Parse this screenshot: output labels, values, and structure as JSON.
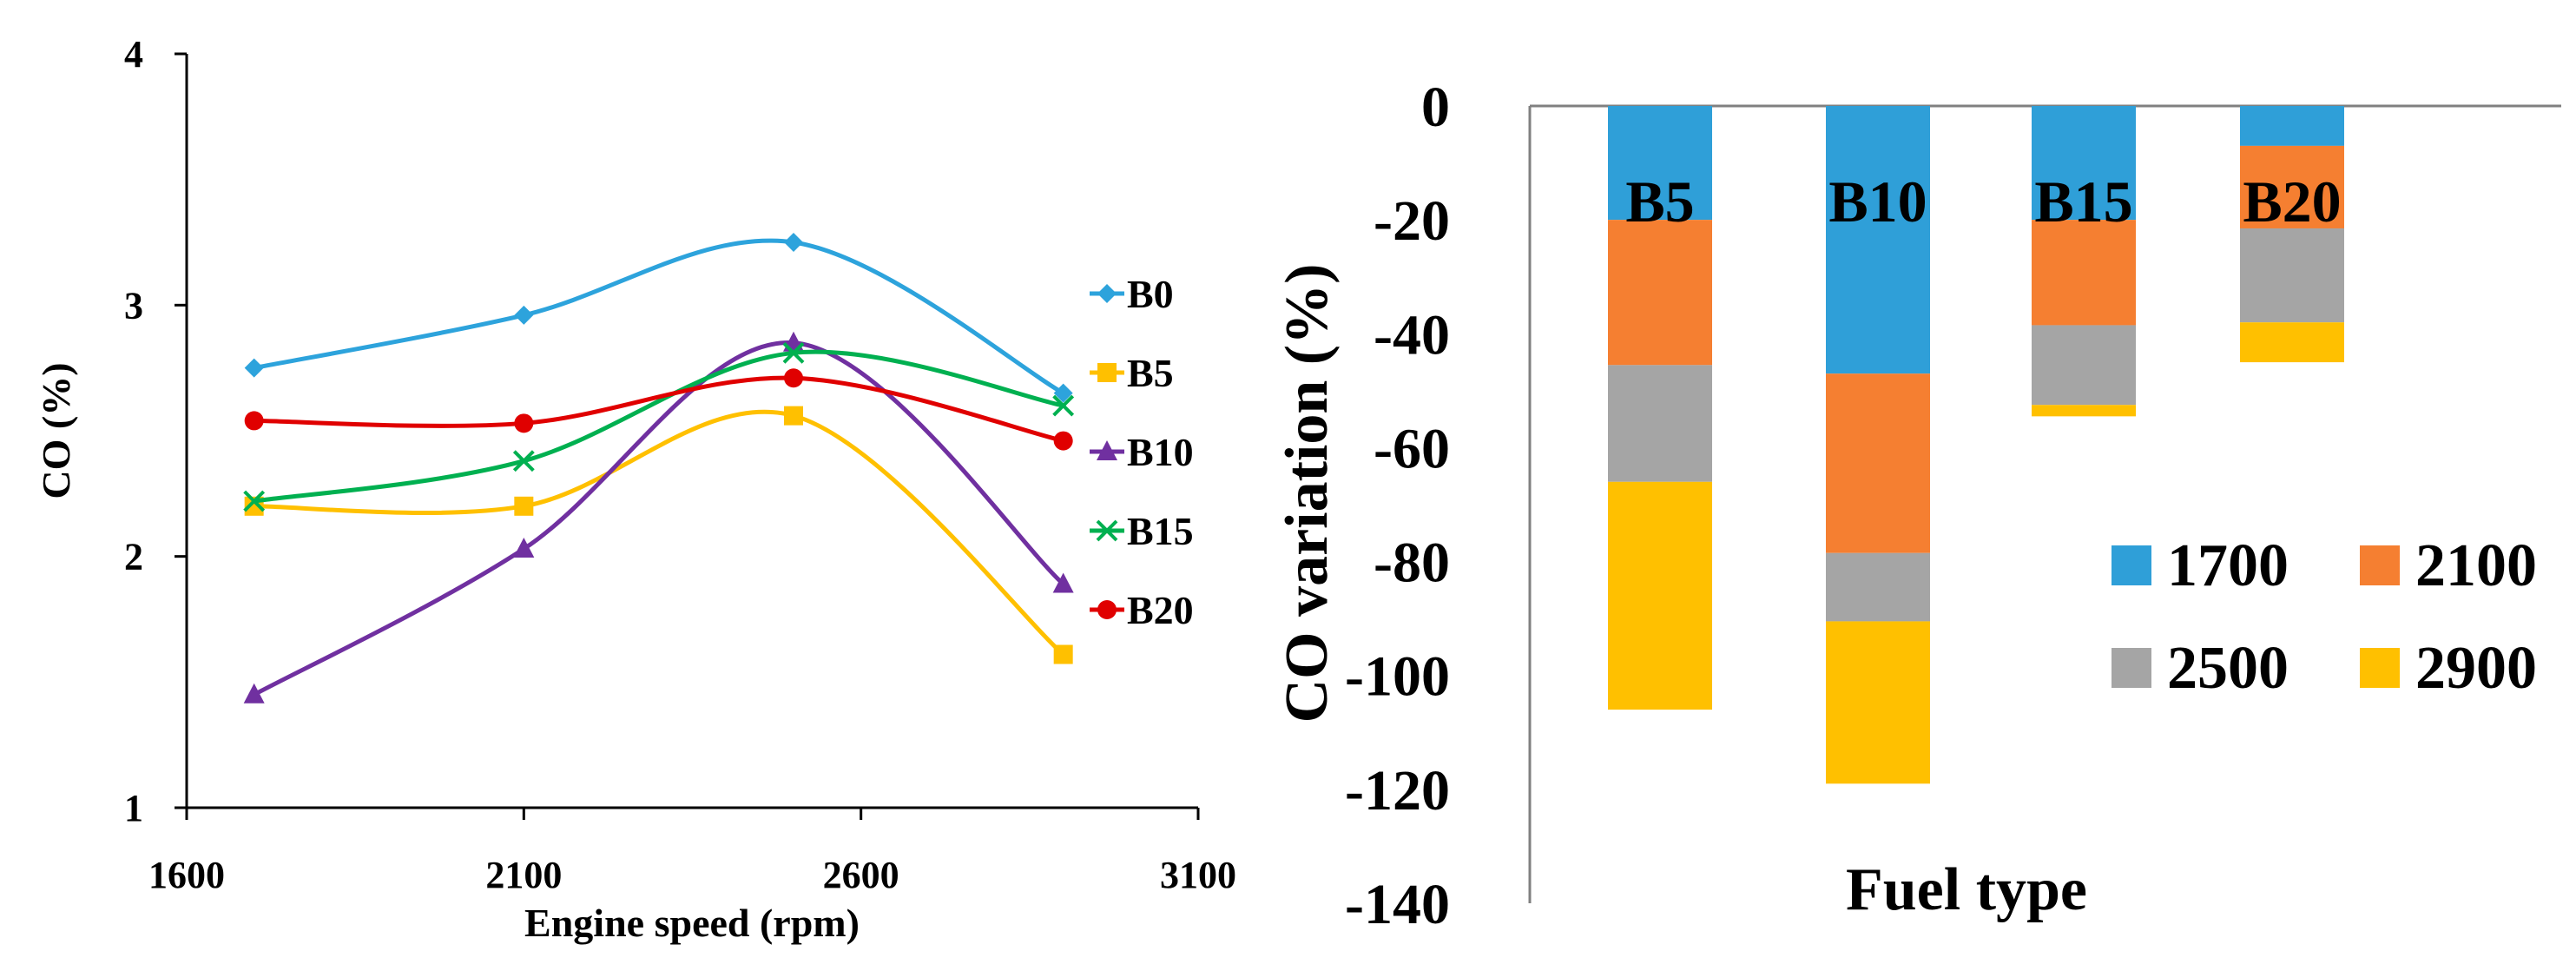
{
  "chart_data": [
    {
      "type": "line",
      "title": "",
      "xlabel": "Engine speed (rpm)",
      "ylabel": "CO (%)",
      "xlim": [
        1600,
        3100
      ],
      "ylim": [
        1,
        4
      ],
      "x_ticks": [
        "1600",
        "2100",
        "2600",
        "3100"
      ],
      "y_ticks": [
        "1",
        "2",
        "3",
        "4"
      ],
      "x": [
        1700,
        2100,
        2500,
        2900
      ],
      "series": [
        {
          "name": "B0",
          "values": [
            2.75,
            2.96,
            3.25,
            2.65
          ],
          "color": "#2da3dc",
          "marker": "diamond"
        },
        {
          "name": "B5",
          "values": [
            2.2,
            2.2,
            2.56,
            1.61
          ],
          "color": "#ffc000",
          "marker": "square"
        },
        {
          "name": "B10",
          "values": [
            1.45,
            2.03,
            2.85,
            1.89
          ],
          "color": "#7030a0",
          "marker": "triangle"
        },
        {
          "name": "B15",
          "values": [
            2.22,
            2.38,
            2.81,
            2.6
          ],
          "color": "#00b050",
          "marker": "x"
        },
        {
          "name": "B20",
          "values": [
            2.54,
            2.53,
            2.71,
            2.46
          ],
          "color": "#e00000",
          "marker": "circle"
        }
      ],
      "legend_position": "right"
    },
    {
      "type": "bar",
      "stacked": true,
      "title": "",
      "xlabel": "Fuel type",
      "ylabel": "CO variation (%)",
      "ylim": [
        -140,
        0
      ],
      "y_ticks": [
        "0",
        "-20",
        "-40",
        "-60",
        "-80",
        "-100",
        "-120",
        "-140"
      ],
      "categories": [
        "B5",
        "B10",
        "B15",
        "B20"
      ],
      "series": [
        {
          "name": "1700",
          "values": [
            -20,
            -47,
            -20,
            -7
          ],
          "color": "#2f9fd8"
        },
        {
          "name": "2100",
          "values": [
            -25.5,
            -31.5,
            -18.5,
            -14.5
          ],
          "color": "#f57f31"
        },
        {
          "name": "2500",
          "values": [
            -20.5,
            -12,
            -14,
            -16.5
          ],
          "color": "#a5a5a5"
        },
        {
          "name": "2900",
          "values": [
            -40,
            -28.5,
            -2,
            -7
          ],
          "color": "#ffc000"
        }
      ],
      "legend_position": "bottom-right"
    }
  ]
}
